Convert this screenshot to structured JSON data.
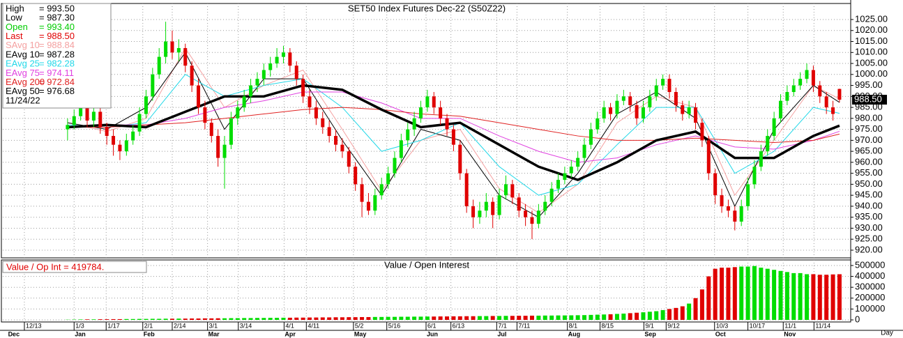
{
  "chart_data": {
    "type": "candlestick",
    "title": "SET50 Index Futures Dec-22 (S50Z22)",
    "ylim": [
      916.5,
      1032.3
    ],
    "yticks": [
      {
        "value": 920,
        "label": "920.00"
      },
      {
        "value": 925,
        "label": "925.00"
      },
      {
        "value": 930,
        "label": "930.00"
      },
      {
        "value": 935,
        "label": "935.00"
      },
      {
        "value": 940,
        "label": "940.00"
      },
      {
        "value": 945,
        "label": "945.00"
      },
      {
        "value": 950,
        "label": "950.00"
      },
      {
        "value": 955,
        "label": "955.00"
      },
      {
        "value": 960,
        "label": "960.00"
      },
      {
        "value": 965,
        "label": "965.00"
      },
      {
        "value": 970,
        "label": "970.00"
      },
      {
        "value": 975,
        "label": "975.00"
      },
      {
        "value": 980,
        "label": "980.00"
      },
      {
        "value": 985,
        "label": "985.00"
      },
      {
        "value": 990,
        "label": "990.00"
      },
      {
        "value": 995,
        "label": "995.00"
      },
      {
        "value": 1000,
        "label": "1000.00"
      },
      {
        "value": 1005,
        "label": "1005.00"
      },
      {
        "value": 1010,
        "label": "1010.00"
      },
      {
        "value": 1015,
        "label": "1015.00"
      },
      {
        "value": 1020,
        "label": "1020.00"
      },
      {
        "value": 1025,
        "label": "1025.00"
      }
    ],
    "xlim": [
      -9.9,
      119.5
    ],
    "xticks": [
      {
        "value": -6.6,
        "label": "12/13"
      },
      {
        "value": 1.0,
        "label": "1/3"
      },
      {
        "value": 5.9,
        "label": "1/17"
      },
      {
        "value": 11.5,
        "label": "2/1"
      },
      {
        "value": 16.0,
        "label": "2/14"
      },
      {
        "value": 21.4,
        "label": "3/1"
      },
      {
        "value": 26.1,
        "label": "3/14"
      },
      {
        "value": 33.1,
        "label": "4/1"
      },
      {
        "value": 36.5,
        "label": "4/11"
      },
      {
        "value": 43.7,
        "label": "5/2"
      },
      {
        "value": 48.8,
        "label": "5/16"
      },
      {
        "value": 54.8,
        "label": "6/1"
      },
      {
        "value": 58.6,
        "label": "6/13"
      },
      {
        "value": 65.6,
        "label": "7/1"
      },
      {
        "value": 68.7,
        "label": "7/11"
      },
      {
        "value": 76.4,
        "label": "8/1"
      },
      {
        "value": 81.4,
        "label": "8/15"
      },
      {
        "value": 88.1,
        "label": "9/1"
      },
      {
        "value": 91.5,
        "label": "9/12"
      },
      {
        "value": 98.9,
        "label": "10/3"
      },
      {
        "value": 104.0,
        "label": "10/17"
      },
      {
        "value": 109.4,
        "label": "11/1"
      },
      {
        "value": 114.1,
        "label": "11/14"
      }
    ],
    "month_ticks": [
      {
        "value": -9.2,
        "label": "Dec"
      },
      {
        "value": 1.0,
        "label": "Jan"
      },
      {
        "value": 11.5,
        "label": "Feb"
      },
      {
        "value": 21.4,
        "label": "Mar"
      },
      {
        "value": 33.1,
        "label": "Apr"
      },
      {
        "value": 43.7,
        "label": "May"
      },
      {
        "value": 54.8,
        "label": "Jun"
      },
      {
        "value": 65.6,
        "label": "Jul"
      },
      {
        "value": 76.4,
        "label": "Aug"
      },
      {
        "value": 88.1,
        "label": "Sep"
      },
      {
        "value": 98.9,
        "label": "Oct"
      },
      {
        "value": 109.4,
        "label": "Nov"
      }
    ],
    "period_label": "Day",
    "up_color": "#00dd00",
    "down_color": "#e00000",
    "candles": [
      [
        975,
        980,
        970,
        977
      ],
      [
        977,
        984,
        975,
        981
      ],
      [
        981,
        990,
        979,
        986
      ],
      [
        986,
        988,
        976,
        979
      ],
      [
        979,
        986,
        976,
        983
      ],
      [
        983,
        985,
        973,
        976
      ],
      [
        976,
        978,
        968,
        972
      ],
      [
        972,
        975,
        963,
        968
      ],
      [
        968,
        970,
        961,
        965
      ],
      [
        965,
        973,
        963,
        970
      ],
      [
        970,
        977,
        968,
        974
      ],
      [
        974,
        985,
        972,
        982
      ],
      [
        982,
        993,
        980,
        990
      ],
      [
        990,
        1003,
        988,
        1000
      ],
      [
        1000,
        1012,
        998,
        1008
      ],
      [
        1008,
        1024,
        1005,
        1015
      ],
      [
        1015,
        1020,
        1007,
        1010
      ],
      [
        1010,
        1016,
        1006,
        1012
      ],
      [
        1012,
        1014,
        1001,
        1004
      ],
      [
        1004,
        1006,
        992,
        995
      ],
      [
        995,
        998,
        982,
        985
      ],
      [
        985,
        988,
        975,
        978
      ],
      [
        978,
        980,
        969,
        972
      ],
      [
        972,
        975,
        958,
        962
      ],
      [
        962,
        972,
        948,
        968
      ],
      [
        968,
        983,
        966,
        980
      ],
      [
        980,
        988,
        977,
        985
      ],
      [
        985,
        993,
        983,
        990
      ],
      [
        990,
        998,
        987,
        995
      ],
      [
        995,
        1001,
        992,
        998
      ],
      [
        998,
        1005,
        995,
        1002
      ],
      [
        1002,
        1008,
        999,
        1005
      ],
      [
        1005,
        1012,
        1003,
        1008
      ],
      [
        1008,
        1013,
        1005,
        1010
      ],
      [
        1010,
        1012,
        1001,
        1004
      ],
      [
        1004,
        1006,
        995,
        998
      ],
      [
        998,
        1000,
        987,
        990
      ],
      [
        990,
        993,
        982,
        985
      ],
      [
        985,
        988,
        977,
        980
      ],
      [
        980,
        983,
        973,
        976
      ],
      [
        976,
        979,
        969,
        972
      ],
      [
        972,
        975,
        965,
        968
      ],
      [
        968,
        971,
        962,
        965
      ],
      [
        965,
        967,
        955,
        958
      ],
      [
        958,
        960,
        947,
        950
      ],
      [
        950,
        953,
        935,
        942
      ],
      [
        942,
        946,
        936,
        938
      ],
      [
        938,
        948,
        936,
        945
      ],
      [
        945,
        953,
        943,
        950
      ],
      [
        950,
        958,
        948,
        955
      ],
      [
        955,
        965,
        953,
        962
      ],
      [
        962,
        973,
        960,
        970
      ],
      [
        970,
        978,
        967,
        975
      ],
      [
        975,
        983,
        972,
        980
      ],
      [
        980,
        988,
        978,
        985
      ],
      [
        985,
        993,
        983,
        990
      ],
      [
        990,
        992,
        982,
        985
      ],
      [
        985,
        988,
        977,
        980
      ],
      [
        980,
        982,
        972,
        975
      ],
      [
        975,
        977,
        965,
        968
      ],
      [
        968,
        970,
        952,
        955
      ],
      [
        955,
        957,
        937,
        940
      ],
      [
        940,
        943,
        930,
        935
      ],
      [
        935,
        942,
        932,
        938
      ],
      [
        938,
        946,
        935,
        942
      ],
      [
        942,
        944,
        930,
        936
      ],
      [
        936,
        948,
        934,
        945
      ],
      [
        945,
        954,
        943,
        950
      ],
      [
        950,
        952,
        941,
        944
      ],
      [
        944,
        946,
        935,
        938
      ],
      [
        938,
        941,
        931,
        935
      ],
      [
        935,
        938,
        925,
        932
      ],
      [
        932,
        941,
        930,
        938
      ],
      [
        938,
        945,
        936,
        942
      ],
      [
        942,
        951,
        940,
        948
      ],
      [
        948,
        955,
        946,
        952
      ],
      [
        952,
        958,
        950,
        955
      ],
      [
        955,
        961,
        953,
        958
      ],
      [
        958,
        965,
        956,
        962
      ],
      [
        962,
        971,
        960,
        968
      ],
      [
        968,
        978,
        966,
        975
      ],
      [
        975,
        983,
        973,
        980
      ],
      [
        980,
        988,
        978,
        985
      ],
      [
        985,
        987,
        979,
        982
      ],
      [
        982,
        991,
        980,
        988
      ],
      [
        988,
        993,
        986,
        990
      ],
      [
        990,
        992,
        983,
        986
      ],
      [
        986,
        988,
        977,
        980
      ],
      [
        980,
        988,
        978,
        985
      ],
      [
        985,
        993,
        983,
        990
      ],
      [
        990,
        998,
        988,
        995
      ],
      [
        995,
        1000,
        993,
        998
      ],
      [
        998,
        1000,
        989,
        992
      ],
      [
        992,
        994,
        983,
        986
      ],
      [
        986,
        988,
        979,
        982
      ],
      [
        982,
        988,
        980,
        985
      ],
      [
        985,
        987,
        975,
        978
      ],
      [
        978,
        980,
        967,
        970
      ],
      [
        970,
        972,
        952,
        955
      ],
      [
        955,
        957,
        941,
        945
      ],
      [
        945,
        948,
        937,
        940
      ],
      [
        940,
        943,
        935,
        938
      ],
      [
        938,
        940,
        929,
        933
      ],
      [
        933,
        943,
        931,
        940
      ],
      [
        940,
        953,
        938,
        950
      ],
      [
        950,
        961,
        948,
        958
      ],
      [
        958,
        968,
        956,
        965
      ],
      [
        965,
        975,
        963,
        972
      ],
      [
        972,
        983,
        970,
        980
      ],
      [
        980,
        991,
        978,
        988
      ],
      [
        988,
        995,
        986,
        992
      ],
      [
        992,
        998,
        990,
        995
      ],
      [
        995,
        1001,
        993,
        998
      ],
      [
        998,
        1005,
        996,
        1002
      ],
      [
        1002,
        1004,
        992,
        995
      ],
      [
        995,
        997,
        987,
        990
      ],
      [
        990,
        992,
        982,
        985
      ],
      [
        985,
        988,
        979,
        982
      ],
      [
        993.4,
        993.5,
        987.3,
        988.5
      ]
    ],
    "ma_x": [
      0,
      6,
      12,
      18,
      24,
      30,
      36,
      42,
      48,
      54,
      60,
      66,
      72,
      78,
      84,
      90,
      96,
      102,
      108,
      114,
      118
    ],
    "series": [
      {
        "name": "SAvg 10",
        "color": "#f4a0a0",
        "width": 1,
        "last_label": "= 988.84",
        "values": [
          978,
          974,
          980,
          1012,
          985,
          995,
          1002,
          975,
          947,
          970,
          975,
          948,
          937,
          950,
          978,
          990,
          985,
          945,
          970,
          995,
          988.84
        ]
      },
      {
        "name": "EAvg 10",
        "color": "#000000",
        "width": 1,
        "last_label": "= 987.28",
        "values": [
          978,
          975,
          985,
          1010,
          975,
          998,
          998,
          970,
          945,
          975,
          970,
          945,
          935,
          955,
          982,
          992,
          980,
          940,
          975,
          995,
          987.28
        ]
      },
      {
        "name": "EAvg 25",
        "color": "#22d8e8",
        "width": 1,
        "last_label": "= 982.28",
        "values": [
          977,
          976,
          978,
          1000,
          990,
          995,
          998,
          985,
          965,
          970,
          978,
          958,
          945,
          950,
          968,
          985,
          985,
          955,
          965,
          985,
          982.28
        ]
      },
      {
        "name": "EAvg 75",
        "color": "#e040e0",
        "width": 1,
        "last_label": "= 974.11",
        "values": [
          976,
          977,
          977,
          980,
          985,
          988,
          992,
          992,
          987,
          980,
          980,
          972,
          965,
          960,
          962,
          968,
          972,
          967,
          966,
          970,
          974.11
        ]
      },
      {
        "name": "EAvg 200",
        "color": "#e02020",
        "width": 1,
        "last_label": "= 972.84",
        "values": [
          976,
          976,
          977,
          978,
          980,
          982,
          984,
          985,
          984,
          982,
          981,
          978,
          975,
          972,
          970,
          970,
          971,
          970,
          969,
          970,
          972.84
        ]
      },
      {
        "name": "EAvg 50",
        "color": "#000000",
        "width": 3.5,
        "last_label": "= 976.68",
        "values": [
          976,
          977,
          976,
          983,
          990,
          990,
          995,
          993,
          984,
          976,
          978,
          968,
          958,
          952,
          960,
          970,
          974,
          962,
          962,
          972,
          976.68
        ]
      }
    ],
    "info": [
      {
        "label": "High",
        "value": "= 993.50",
        "color": "#000000"
      },
      {
        "label": "Low",
        "value": "= 987.30",
        "color": "#000000"
      },
      {
        "label": "Open",
        "value": "= 993.40",
        "color": "#00cc00"
      },
      {
        "label": "Last",
        "value": "= 988.50",
        "color": "#e00000"
      }
    ],
    "info_date": "11/24/22",
    "last_price_label": "988.50",
    "last_price": 988.5,
    "volume": {
      "title": "Value / Open Interest",
      "label": "Value / Op Int = 419784.",
      "ylim": [
        -19000,
        551000
      ],
      "yticks": [
        0,
        100000,
        200000,
        300000,
        400000,
        500000
      ],
      "values": [
        2000,
        3000,
        4000,
        5000,
        5000,
        6000,
        6000,
        7000,
        7000,
        8000,
        8000,
        9000,
        9000,
        10000,
        10000,
        11000,
        11000,
        12000,
        12000,
        13000,
        13000,
        14000,
        14000,
        15000,
        15000,
        16000,
        16000,
        17000,
        17000,
        18000,
        18000,
        19000,
        19000,
        20000,
        20000,
        21000,
        21000,
        22000,
        22000,
        23000,
        23000,
        24000,
        24000,
        25000,
        25000,
        26000,
        26000,
        27000,
        27000,
        28000,
        28000,
        29000,
        29000,
        30000,
        30000,
        31000,
        31000,
        32000,
        32000,
        33000,
        33000,
        34000,
        34000,
        35000,
        35000,
        36000,
        36000,
        37000,
        37000,
        38000,
        38000,
        39000,
        39000,
        40000,
        40000,
        41000,
        41000,
        42000,
        43000,
        44000,
        46000,
        48000,
        50000,
        52000,
        55000,
        58000,
        62000,
        66000,
        70000,
        75000,
        80000,
        90000,
        100000,
        110000,
        125000,
        150000,
        200000,
        280000,
        400000,
        470000,
        480000,
        480000,
        485000,
        490000,
        490000,
        495000,
        480000,
        470000,
        460000,
        450000,
        440000,
        430000,
        430000,
        420000,
        420000,
        415000,
        415000,
        418000,
        419784
      ]
    }
  }
}
